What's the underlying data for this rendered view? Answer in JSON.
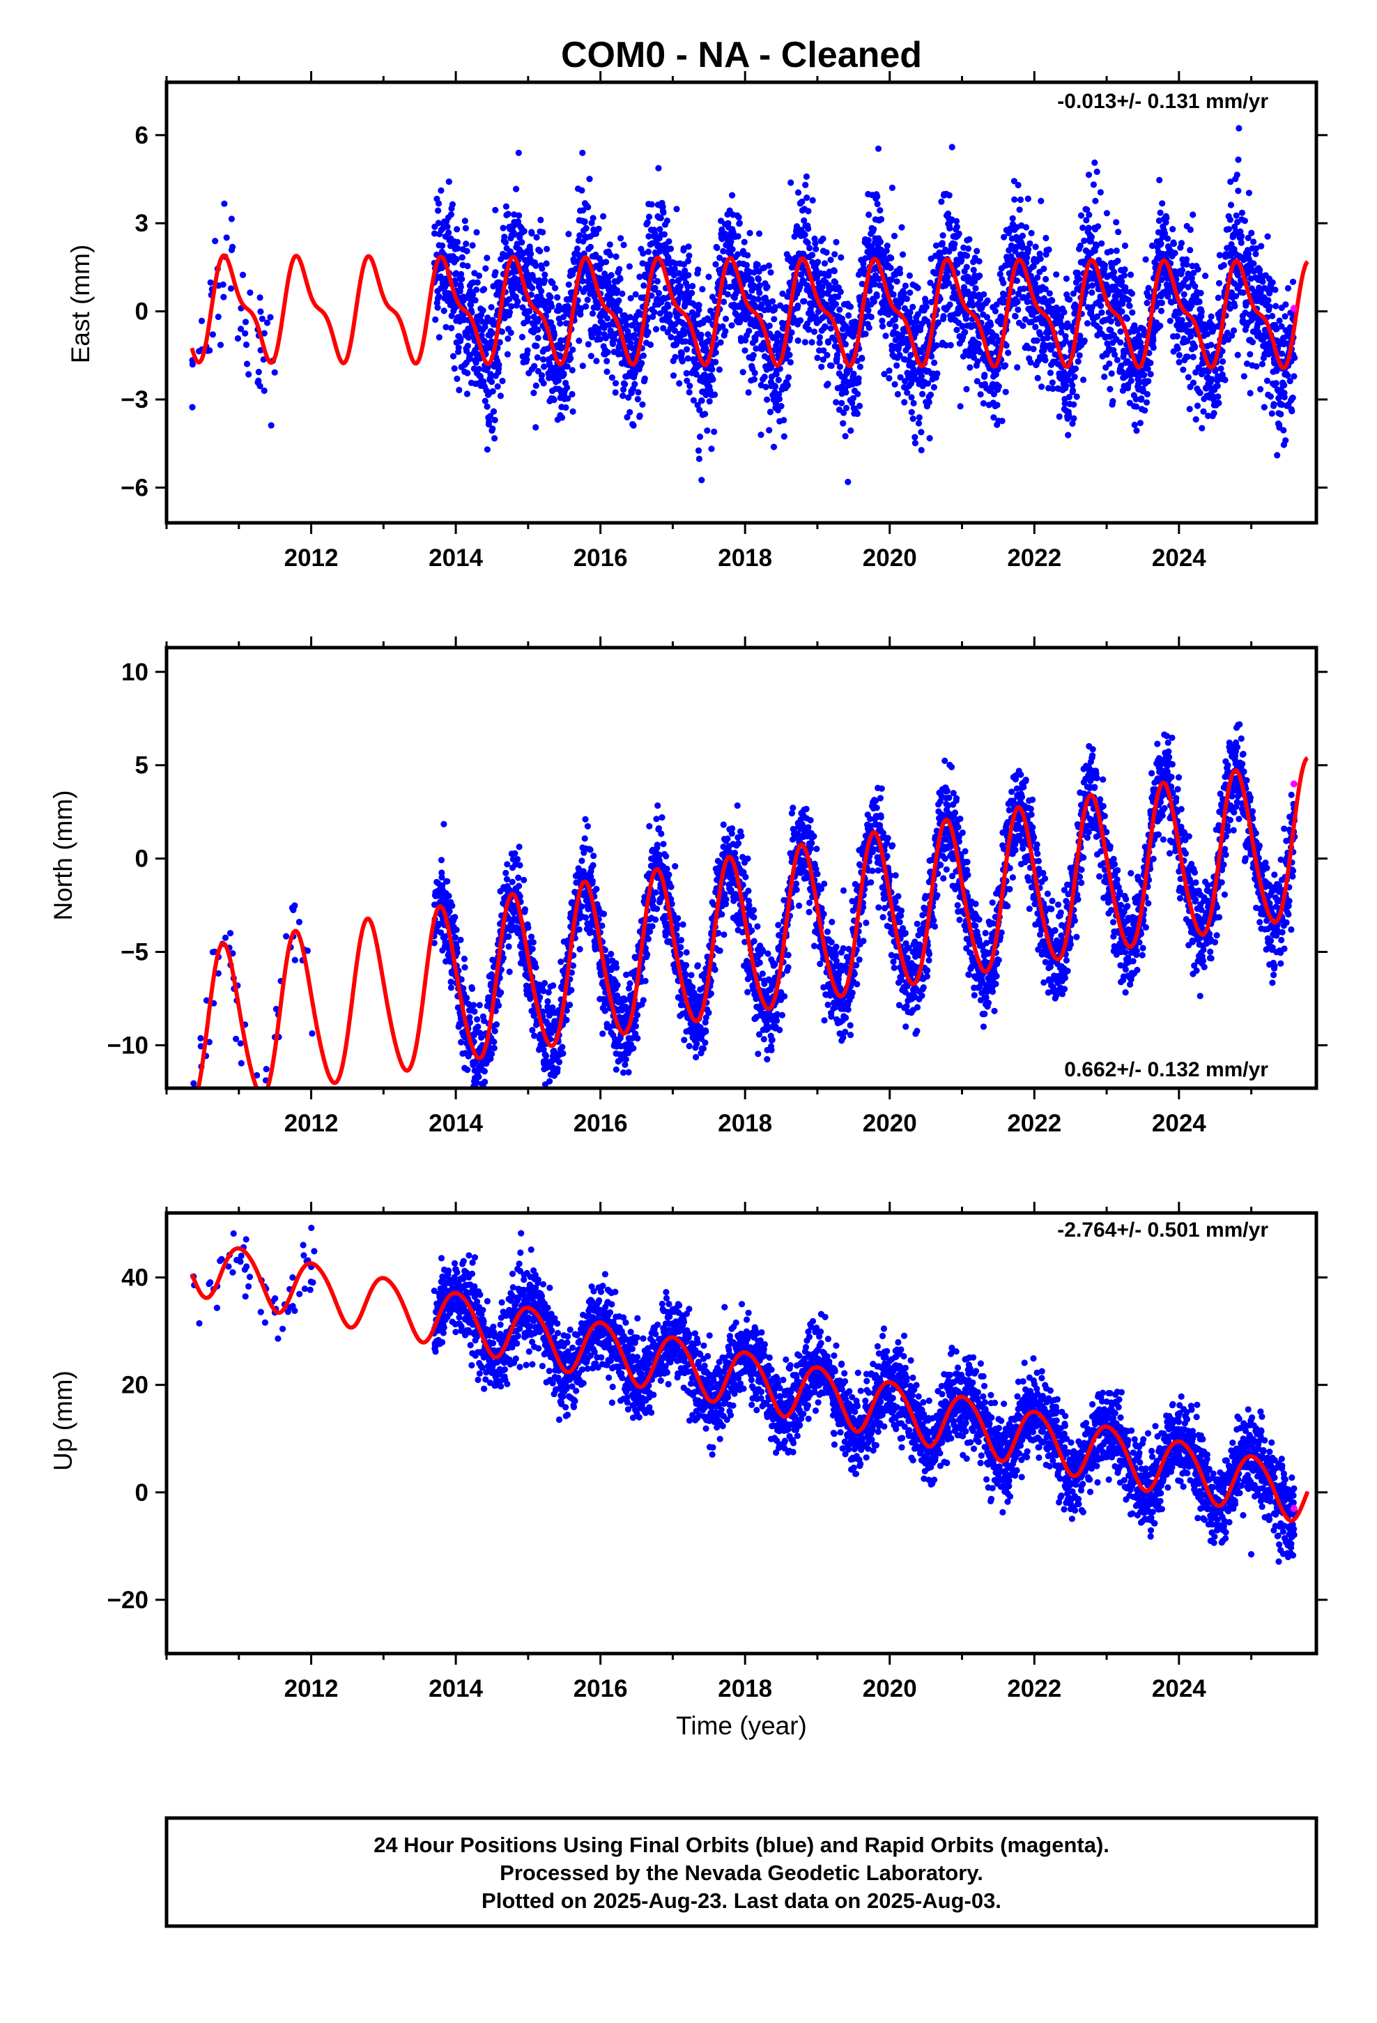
{
  "title": "COM0  - NA - Cleaned",
  "footer": {
    "lines": [
      "24 Hour Positions Using Final Orbits (blue) and Rapid Orbits (magenta).",
      "Processed by the Nevada Geodetic Laboratory.",
      "Plotted on 2025-Aug-23. Last data on 2025-Aug-03."
    ]
  },
  "colors": {
    "final_orbits": "#0000ff",
    "rapid_orbits": "#ff00ff",
    "model": "#ff0000",
    "frame": "#000000"
  },
  "chart_data": [
    {
      "type": "scatter",
      "name": "east",
      "ylabel": "East (mm)",
      "xlabel": "",
      "xlim": [
        2010.0,
        2025.9
      ],
      "ylim": [
        -7.2,
        7.8
      ],
      "xticks": [
        2012,
        2014,
        2016,
        2018,
        2020,
        2022,
        2024
      ],
      "xtick_labels": [
        "2012",
        "2014",
        "2016",
        "2018",
        "2020",
        "2022",
        "2024"
      ],
      "yticks": [
        -6,
        -3,
        0,
        3,
        6
      ],
      "ytick_labels": [
        "−6",
        "−3",
        "0",
        "3",
        "6"
      ],
      "rate_text": "-0.013+/- 0.131 mm/yr",
      "rate_position": "top-right",
      "model": {
        "offset": 0.0,
        "trend": -0.013,
        "amp": 1.5,
        "phase_year": 0.62,
        "amp2": 0.6,
        "phase2_year": 0.12
      },
      "data_span": {
        "early_start": 2010.35,
        "early_end": 2011.5,
        "dense_start": 2013.7,
        "end": 2025.6
      },
      "scatter_sd": 1.2,
      "rapid_point": {
        "x": 2025.59,
        "y": 0.1
      }
    },
    {
      "type": "scatter",
      "name": "north",
      "ylabel": "North (mm)",
      "xlabel": "",
      "xlim": [
        2010.0,
        2025.9
      ],
      "ylim": [
        -12.3,
        11.3
      ],
      "xticks": [
        2012,
        2014,
        2016,
        2018,
        2020,
        2022,
        2024
      ],
      "xtick_labels": [
        "2012",
        "2014",
        "2016",
        "2018",
        "2020",
        "2022",
        "2024"
      ],
      "yticks": [
        -10,
        -5,
        0,
        5,
        10
      ],
      "ytick_labels": [
        "−10",
        "−5",
        "0",
        "5",
        "10"
      ],
      "rate_text": "0.662+/- 0.132 mm/yr",
      "rate_position": "bottom-right",
      "model": {
        "offset": -4.9,
        "trend": 0.662,
        "amp": 4.2,
        "phase_year": 0.55,
        "amp2": 0.4,
        "phase2_year": 0.1
      },
      "data_span": {
        "early_start": 2010.35,
        "early_end": 2012.1,
        "dense_start": 2013.7,
        "end": 2025.6
      },
      "scatter_sd": 1.3,
      "rapid_point": {
        "x": 2025.59,
        "y": 4.0
      }
    },
    {
      "type": "scatter",
      "name": "up",
      "ylabel": "Up (mm)",
      "xlabel": "Time (year)",
      "xlim": [
        2010.0,
        2025.9
      ],
      "ylim": [
        -30.0,
        52.0
      ],
      "xticks": [
        2012,
        2014,
        2016,
        2018,
        2020,
        2022,
        2024
      ],
      "xtick_labels": [
        "2012",
        "2014",
        "2016",
        "2018",
        "2020",
        "2022",
        "2024"
      ],
      "yticks": [
        -20,
        0,
        20,
        40
      ],
      "ytick_labels": [
        "−20",
        "0",
        "20",
        "40"
      ],
      "rate_text": "-2.764+/- 0.501 mm/yr",
      "rate_position": "top-right",
      "model": {
        "offset": 24.0,
        "trend": -2.764,
        "amp": 5.2,
        "phase_year": 0.78,
        "amp2": 0.5,
        "phase2_year": 0.2
      },
      "data_span": {
        "early_start": 2010.35,
        "early_end": 2012.1,
        "dense_start": 2013.7,
        "end": 2025.6
      },
      "scatter_sd": 3.8,
      "rapid_point": {
        "x": 2025.59,
        "y": -3.0
      }
    }
  ]
}
